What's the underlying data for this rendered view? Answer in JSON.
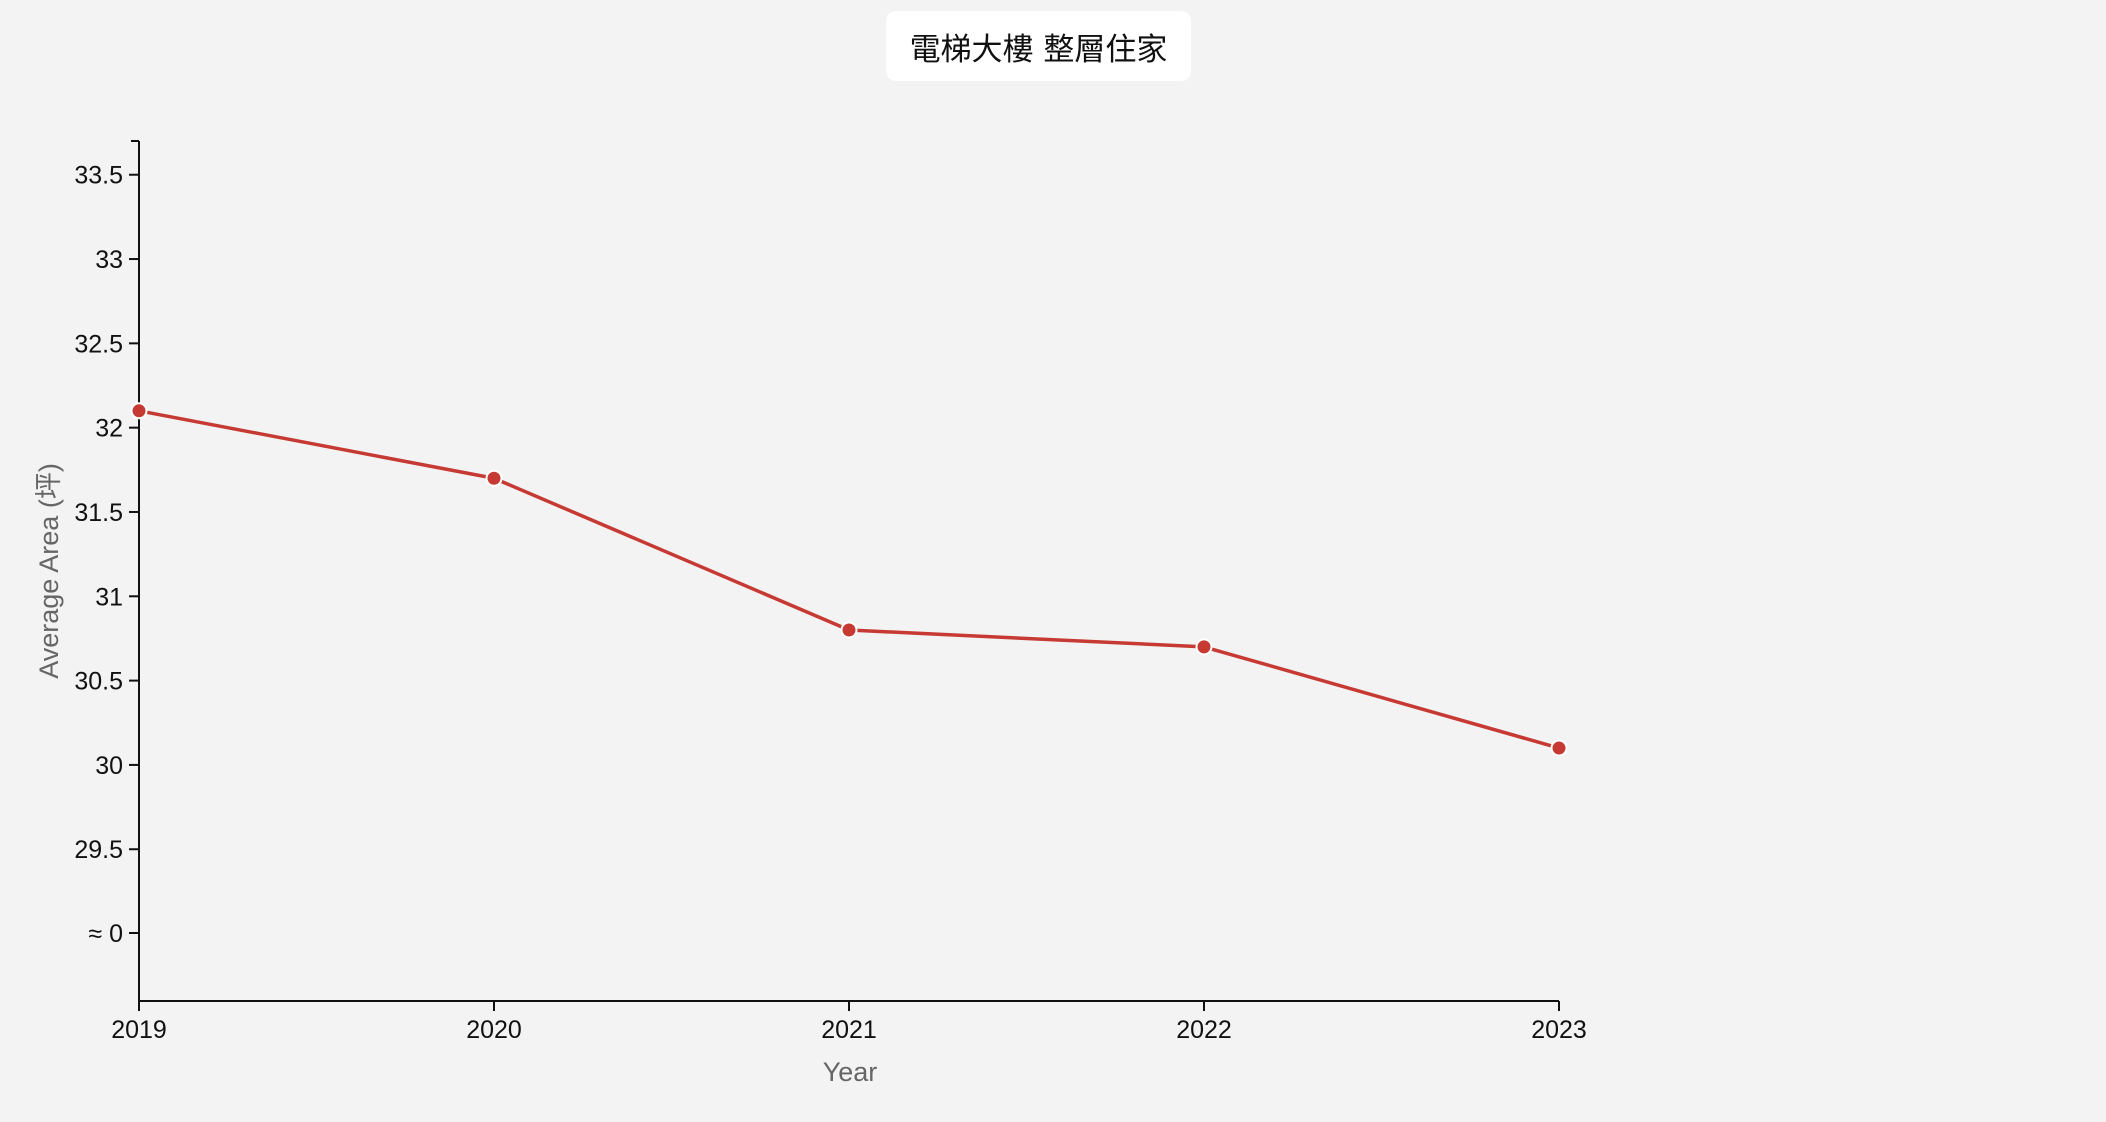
{
  "chart_data": {
    "type": "line",
    "title": "電梯大樓 整層住家",
    "xlabel": "Year",
    "ylabel": "Average Area (坪)",
    "x": [
      "2019",
      "2020",
      "2021",
      "2022",
      "2023"
    ],
    "series": [
      {
        "values": [
          32.1,
          31.7,
          30.8,
          30.7,
          30.1
        ],
        "color": "#c63a33"
      }
    ],
    "y_ticks": [
      29.5,
      30,
      30.5,
      31,
      31.5,
      32,
      32.5,
      33,
      33.5
    ],
    "y_break_label": "≈ 0",
    "ylim": [
      28.6,
      33.7
    ],
    "grid": false,
    "legend": "none"
  }
}
